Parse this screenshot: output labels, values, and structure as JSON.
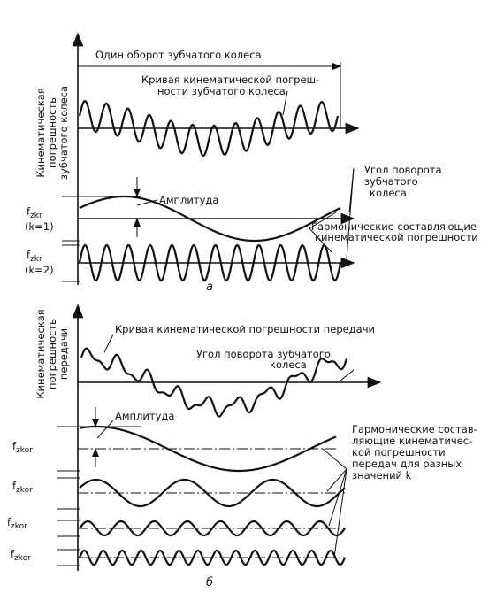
{
  "part_a": {
    "revolution_label": "Один оборот зубчатого колеса",
    "y_axis_label": [
      "Кинематическая",
      "погрешность",
      "зубчатого колеса"
    ],
    "curve_label": [
      "Кривая кинематической погреш-",
      "ности зубчатого колеса"
    ],
    "x_axis_label": [
      "Угол поворота",
      "зубчатого",
      "колеса"
    ],
    "amplitude_label": "Амплитуда",
    "harmonics_label": [
      "Гармонические составляющие",
      "кинематической погрешности"
    ],
    "harmonic_1": {
      "symbol": "f",
      "subscript": "zkr",
      "order": "(k=1)"
    },
    "harmonic_2": {
      "symbol": "f",
      "subscript": "zkr",
      "order": "(k=2)"
    },
    "caption": "а"
  },
  "part_b": {
    "y_axis_label": [
      "Кинематическая",
      "погрешность",
      "передачи"
    ],
    "curve_label": "Кривая кинематической погрешности передачи",
    "x_axis_label": [
      "Угол поворота зубчатого",
      "колеса"
    ],
    "amplitude_label": "Амплитуда",
    "harmonics_label": [
      "Гармонические состав-",
      "ляющие кинематичес-",
      "кой погрешности",
      "передач для разных",
      "значений k"
    ],
    "harmonic_labels": [
      {
        "symbol": "f",
        "subscript": "zkor"
      },
      {
        "symbol": "f",
        "subscript": "zkor"
      },
      {
        "symbol": "f",
        "subscript": "zkor"
      },
      {
        "symbol": "f",
        "subscript": "zkor"
      }
    ],
    "caption": "б"
  }
}
